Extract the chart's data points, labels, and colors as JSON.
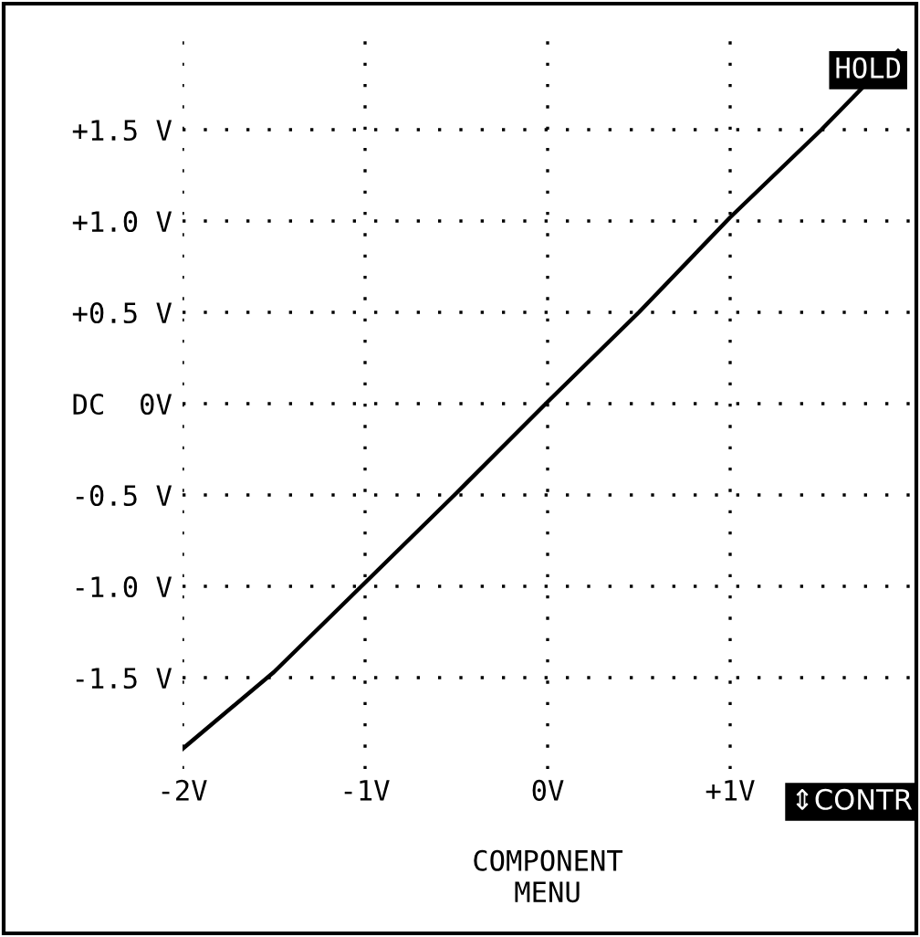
{
  "chart_data": {
    "type": "line",
    "x": [
      -2,
      -1.5,
      -1,
      -0.5,
      0,
      0.5,
      1,
      1.5,
      1.92
    ],
    "values": [
      -1.89,
      -1.47,
      -0.98,
      -0.49,
      0.01,
      0.5,
      1.02,
      1.5,
      1.93
    ],
    "color": "#000000",
    "xlim": [
      -2,
      2
    ],
    "ylim": [
      -2,
      2
    ],
    "xticks": [
      {
        "value": -2,
        "label": "-2V"
      },
      {
        "value": -1,
        "label": "-1V"
      },
      {
        "value": 0,
        "label": "0V"
      },
      {
        "value": 1,
        "label": "+1V"
      }
    ],
    "yticks": [
      {
        "value": 1.5,
        "label": "+1.5 V"
      },
      {
        "value": 1,
        "label": "+1.0 V"
      },
      {
        "value": 0.5,
        "label": "+0.5 V"
      },
      {
        "value": 0,
        "label": "DC  0V"
      },
      {
        "value": -0.5,
        "label": "-0.5 V"
      },
      {
        "value": -1,
        "label": "-1.0 V"
      },
      {
        "value": -1.5,
        "label": "-1.5 V"
      }
    ],
    "grid": true,
    "annotations": [
      "HOLD",
      "⇕CONTR",
      "COMPONENT\nMENU"
    ]
  }
}
